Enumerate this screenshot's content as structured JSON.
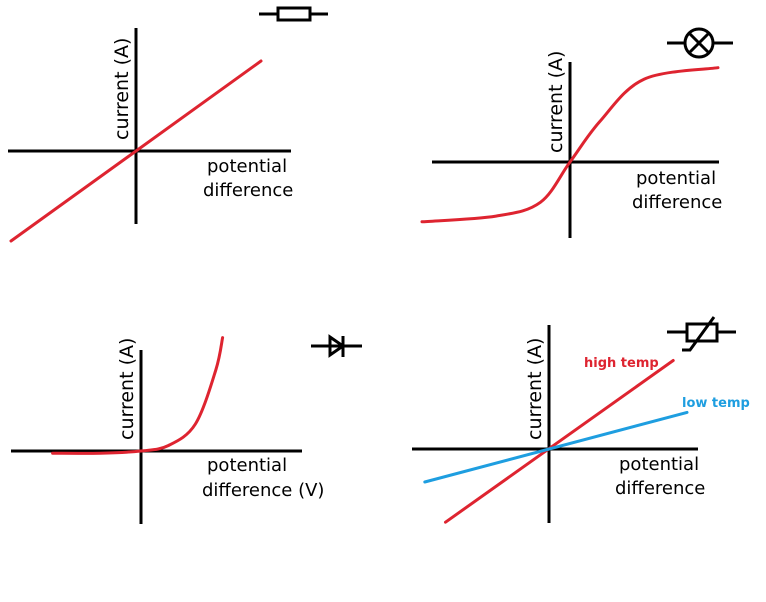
{
  "colors": {
    "red": "#de2430",
    "blue": "#1e9ee0",
    "axis": "#000000"
  },
  "chart_data": [
    {
      "type": "line",
      "title": "",
      "component": "resistor-icon",
      "ylabel": "current (A)",
      "xlabel": [
        "potential",
        "difference"
      ],
      "series": [
        {
          "color": "#de2430",
          "x": [
            -1,
            1
          ],
          "y": [
            -0.6,
            0.6
          ]
        }
      ]
    },
    {
      "type": "line",
      "title": "",
      "component": "filament-lamp-icon",
      "ylabel": "current (A)",
      "xlabel": [
        "potential",
        "difference"
      ],
      "series": [
        {
          "color": "#de2430",
          "x": [
            -1,
            -0.5,
            -0.2,
            0,
            0.2,
            0.5,
            1
          ],
          "y": [
            -0.52,
            -0.47,
            -0.35,
            0,
            0.35,
            0.72,
            0.82
          ]
        }
      ]
    },
    {
      "type": "line",
      "title": "",
      "component": "diode-icon",
      "ylabel": "current (A)",
      "xlabel": [
        "potential",
        "difference (V)"
      ],
      "series": [
        {
          "color": "#de2430",
          "x": [
            -0.65,
            -0.3,
            0,
            0.2,
            0.4,
            0.55,
            0.6
          ],
          "y": [
            -0.02,
            -0.02,
            0,
            0.05,
            0.25,
            0.75,
            1.05
          ]
        }
      ]
    },
    {
      "type": "line",
      "title": "",
      "component": "thermistor-icon",
      "ylabel": "current (A)",
      "xlabel": [
        "potential",
        "difference"
      ],
      "series": [
        {
          "name": "high temp",
          "color": "#de2430",
          "x": [
            -0.75,
            0.9
          ],
          "y": [
            -0.62,
            0.75
          ]
        },
        {
          "name": "low temp",
          "color": "#1e9ee0",
          "x": [
            -0.9,
            1
          ],
          "y": [
            -0.28,
            0.31
          ]
        }
      ]
    }
  ]
}
